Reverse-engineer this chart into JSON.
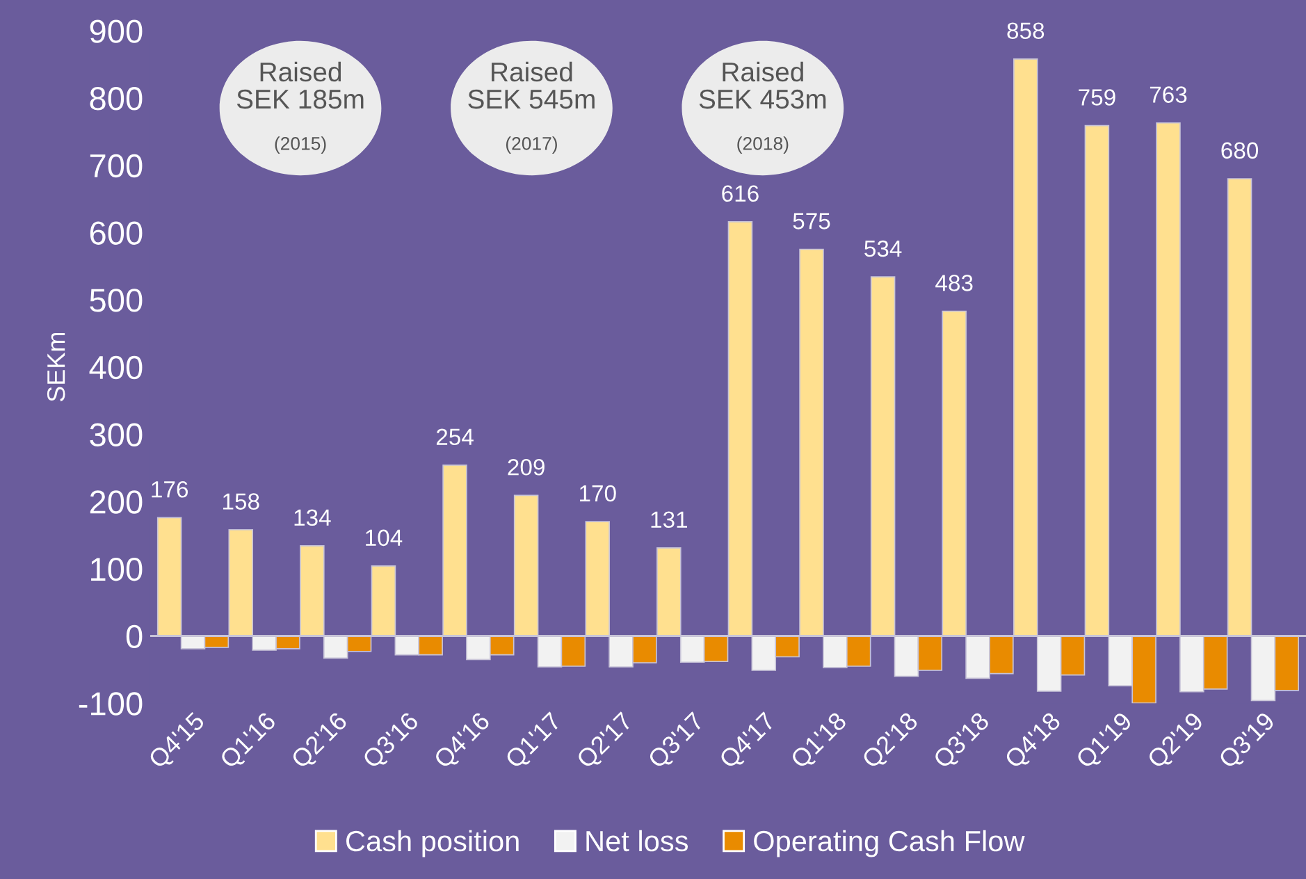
{
  "chart_data": {
    "type": "bar",
    "ylabel": "SEKm",
    "categories": [
      "Q4'15",
      "Q1'16",
      "Q2'16",
      "Q3'16",
      "Q4'16",
      "Q1'17",
      "Q2'17",
      "Q3'17",
      "Q4'17",
      "Q1'18",
      "Q2'18",
      "Q3'18",
      "Q4'18",
      "Q1'19",
      "Q2'19",
      "Q3'19"
    ],
    "series": [
      {
        "name": "Cash position",
        "color": "#ffe08f",
        "values": [
          176,
          158,
          134,
          104,
          254,
          209,
          170,
          131,
          616,
          575,
          534,
          483,
          858,
          759,
          763,
          680
        ],
        "value_labels": [
          "176",
          "158",
          "134",
          "104",
          "254",
          "209",
          "170",
          "131",
          "616",
          "575",
          "534",
          "483",
          "858",
          "759",
          "763",
          "680"
        ]
      },
      {
        "name": "Net loss",
        "color": "#f2f2f2",
        "values": [
          -19,
          -21,
          -33,
          -28,
          -35,
          -46,
          -46,
          -39,
          -51,
          -47,
          -60,
          -63,
          -82,
          -74,
          -83,
          -96
        ]
      },
      {
        "name": "Operating Cash Flow",
        "color": "#e98b00",
        "values": [
          -17,
          -19,
          -23,
          -28,
          -28,
          -45,
          -40,
          -38,
          -31,
          -45,
          -51,
          -56,
          -58,
          -100,
          -79,
          -81
        ]
      }
    ],
    "ylim": [
      -100,
      900
    ],
    "ref_lines": [
      {
        "axis": "y",
        "value": 0,
        "color": "#c8c4d8"
      }
    ],
    "yticks": [
      -100,
      0,
      100,
      200,
      300,
      400,
      500,
      600,
      700,
      800,
      900
    ],
    "grid": false,
    "legend": "bottom",
    "annotations": [
      "Raised\nSEK 185m\n(2015)",
      "Raised\nSEK 545m\n(2017)",
      "Raised\nSEK 453m\n(2018)"
    ]
  }
}
